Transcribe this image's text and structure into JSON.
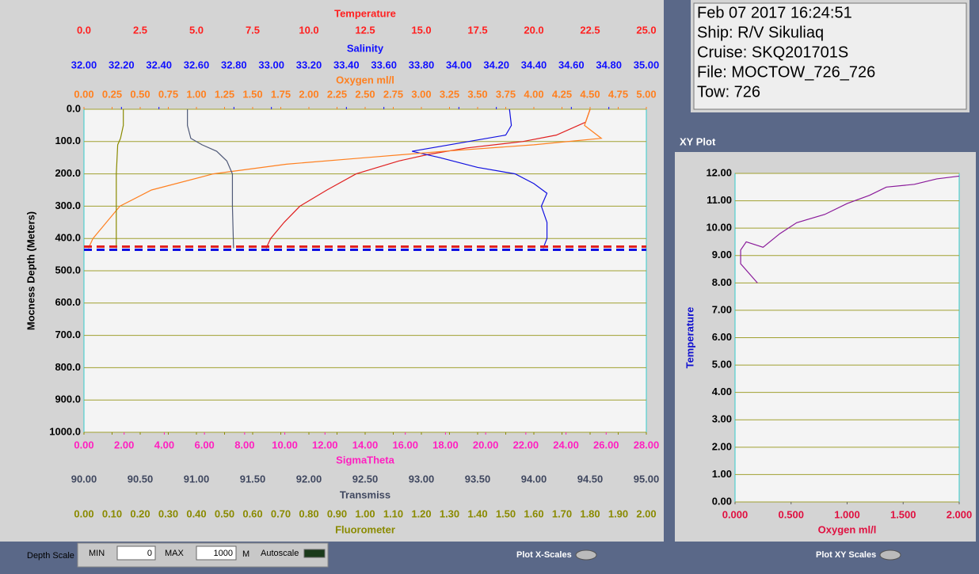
{
  "info": {
    "lines": [
      "Feb 07 2017 16:24:51",
      "Ship: R/V Sikuliaq",
      "Cruise: SKQ201701S",
      "File: MOCTOW_726_726",
      "Tow: 726"
    ]
  },
  "xy_title": "XY Plot",
  "controls": {
    "depth_scale": "Depth Scale",
    "min_label": "MIN",
    "min_value": "0",
    "max_label": "MAX",
    "max_value": "1000",
    "unit": "M",
    "autoscale": "Autoscale",
    "plot_x_scales": "Plot X-Scales",
    "plot_xy_scales": "Plot XY Scales"
  },
  "chart_data": [
    {
      "type": "line",
      "y_title": "Mocness Depth (Meters)",
      "y_inverted": true,
      "grid": true,
      "ylim": [
        0,
        1000
      ],
      "yticks": [
        {
          "value": 0,
          "label": "0.0"
        },
        {
          "value": 100,
          "label": "100.0"
        },
        {
          "value": 200,
          "label": "200.0"
        },
        {
          "value": 300,
          "label": "300.0"
        },
        {
          "value": 400,
          "label": "400.0"
        },
        {
          "value": 500,
          "label": "500.0"
        },
        {
          "value": 600,
          "label": "600.0"
        },
        {
          "value": 700,
          "label": "700.0"
        },
        {
          "value": 800,
          "label": "800.0"
        },
        {
          "value": 900,
          "label": "900.0"
        },
        {
          "value": 1000,
          "label": "1000.0"
        }
      ],
      "x_axes": [
        {
          "title": "Temperature",
          "color": "#ff2020",
          "position": "top",
          "xlim": [
            0,
            25
          ],
          "xticks": [
            {
              "value": 0,
              "label": "0.0"
            },
            2.5,
            {
              "value": 5,
              "label": "5.0"
            },
            7.5,
            {
              "value": 10,
              "label": "10.0"
            },
            12.5,
            {
              "value": 15,
              "label": "15.0"
            },
            17.5,
            {
              "value": 20,
              "label": "20.0"
            },
            22.5,
            {
              "value": 25,
              "label": "25.0"
            }
          ]
        },
        {
          "title": "Salinity",
          "color": "#1010ff",
          "position": "top",
          "xlim": [
            32,
            35
          ],
          "xticks": [
            {
              "value": 32,
              "label": "32.00"
            },
            {
              "value": 32.2,
              "label": "32.20"
            },
            {
              "value": 32.4,
              "label": "32.40"
            },
            {
              "value": 32.6,
              "label": "32.60"
            },
            {
              "value": 32.8,
              "label": "32.80"
            },
            {
              "value": 33,
              "label": "33.00"
            },
            {
              "value": 33.2,
              "label": "33.20"
            },
            {
              "value": 33.4,
              "label": "33.40"
            },
            {
              "value": 33.6,
              "label": "33.60"
            },
            {
              "value": 33.8,
              "label": "33.80"
            },
            {
              "value": 34,
              "label": "34.00"
            },
            {
              "value": 34.2,
              "label": "34.20"
            },
            {
              "value": 34.4,
              "label": "34.40"
            },
            {
              "value": 34.6,
              "label": "34.60"
            },
            {
              "value": 34.8,
              "label": "34.80"
            },
            {
              "value": 35,
              "label": "35.00"
            }
          ]
        },
        {
          "title": "Oxygen ml/l",
          "color": "#ff8020",
          "position": "top",
          "xlim": [
            0,
            5
          ],
          "xticks": [
            {
              "value": 0,
              "label": "0.00"
            },
            {
              "value": 0.25,
              "label": "0.25"
            },
            {
              "value": 0.5,
              "label": "0.50"
            },
            {
              "value": 0.75,
              "label": "0.75"
            },
            {
              "value": 1,
              "label": "1.00"
            },
            {
              "value": 1.25,
              "label": "1.25"
            },
            {
              "value": 1.5,
              "label": "1.50"
            },
            {
              "value": 1.75,
              "label": "1.75"
            },
            {
              "value": 2,
              "label": "2.00"
            },
            {
              "value": 2.25,
              "label": "2.25"
            },
            {
              "value": 2.5,
              "label": "2.50"
            },
            {
              "value": 2.75,
              "label": "2.75"
            },
            {
              "value": 3,
              "label": "3.00"
            },
            {
              "value": 3.25,
              "label": "3.25"
            },
            {
              "value": 3.5,
              "label": "3.50"
            },
            {
              "value": 3.75,
              "label": "3.75"
            },
            {
              "value": 4,
              "label": "4.00"
            },
            {
              "value": 4.25,
              "label": "4.25"
            },
            {
              "value": 4.5,
              "label": "4.50"
            },
            {
              "value": 4.75,
              "label": "4.75"
            },
            {
              "value": 5,
              "label": "5.00"
            }
          ]
        },
        {
          "title": "SigmaTheta",
          "color": "#ff20c0",
          "position": "bottom",
          "xlim": [
            0,
            28
          ],
          "xticks": [
            {
              "value": 0,
              "label": "0.00"
            },
            {
              "value": 2,
              "label": "2.00"
            },
            {
              "value": 4,
              "label": "4.00"
            },
            {
              "value": 6,
              "label": "6.00"
            },
            {
              "value": 8,
              "label": "8.00"
            },
            {
              "value": 10,
              "label": "10.00"
            },
            {
              "value": 12,
              "label": "12.00"
            },
            {
              "value": 14,
              "label": "14.00"
            },
            {
              "value": 16,
              "label": "16.00"
            },
            {
              "value": 18,
              "label": "18.00"
            },
            {
              "value": 20,
              "label": "20.00"
            },
            {
              "value": 22,
              "label": "22.00"
            },
            {
              "value": 24,
              "label": "24.00"
            },
            {
              "value": 26,
              "label": "26.00"
            },
            {
              "value": 28,
              "label": "28.00"
            }
          ]
        },
        {
          "title": "Transmiss",
          "color": "#404860",
          "position": "bottom",
          "xlim": [
            90,
            95
          ],
          "xticks": [
            {
              "value": 90,
              "label": "90.00"
            },
            {
              "value": 90.5,
              "label": "90.50"
            },
            {
              "value": 91,
              "label": "91.00"
            },
            {
              "value": 91.5,
              "label": "91.50"
            },
            {
              "value": 92,
              "label": "92.00"
            },
            {
              "value": 92.5,
              "label": "92.50"
            },
            {
              "value": 93,
              "label": "93.00"
            },
            {
              "value": 93.5,
              "label": "93.50"
            },
            {
              "value": 94,
              "label": "94.00"
            },
            {
              "value": 94.5,
              "label": "94.50"
            },
            {
              "value": 95,
              "label": "95.00"
            }
          ]
        },
        {
          "title": "Fluorometer",
          "color": "#8a8a00",
          "position": "bottom",
          "xlim": [
            0,
            2
          ],
          "xticks": [
            {
              "value": 0,
              "label": "0.00"
            },
            {
              "value": 0.1,
              "label": "0.10"
            },
            {
              "value": 0.2,
              "label": "0.20"
            },
            {
              "value": 0.3,
              "label": "0.30"
            },
            {
              "value": 0.4,
              "label": "0.40"
            },
            {
              "value": 0.5,
              "label": "0.50"
            },
            {
              "value": 0.6,
              "label": "0.60"
            },
            {
              "value": 0.7,
              "label": "0.70"
            },
            {
              "value": 0.8,
              "label": "0.80"
            },
            {
              "value": 0.9,
              "label": "0.90"
            },
            {
              "value": 1,
              "label": "1.00"
            },
            {
              "value": 1.1,
              "label": "1.10"
            },
            {
              "value": 1.2,
              "label": "1.20"
            },
            {
              "value": 1.3,
              "label": "1.30"
            },
            {
              "value": 1.4,
              "label": "1.40"
            },
            {
              "value": 1.5,
              "label": "1.50"
            },
            {
              "value": 1.6,
              "label": "1.60"
            },
            {
              "value": 1.7,
              "label": "1.70"
            },
            {
              "value": 1.8,
              "label": "1.80"
            },
            {
              "value": 1.9,
              "label": "1.90"
            },
            {
              "value": 2,
              "label": "2.00"
            }
          ]
        }
      ],
      "series": [
        {
          "axis": 0,
          "color": "#e02020",
          "depth": [
            0,
            40,
            80,
            100,
            120,
            140,
            160,
            200,
            250,
            300,
            350,
            400,
            430
          ],
          "values": [
            22.5,
            22.3,
            21,
            19.5,
            17,
            15.3,
            14,
            12.1,
            10.8,
            9.6,
            8.9,
            8.3,
            8.1
          ]
        },
        {
          "axis": 1,
          "color": "#1010e0",
          "depth": [
            0,
            50,
            80,
            100,
            130,
            150,
            180,
            200,
            230,
            260,
            300,
            350,
            400,
            430
          ],
          "values": [
            34.27,
            34.28,
            34.25,
            34.05,
            33.75,
            33.9,
            34.1,
            34.3,
            34.4,
            34.47,
            34.44,
            34.47,
            34.47,
            34.45
          ]
        },
        {
          "axis": 2,
          "color": "#ff8020",
          "depth": [
            0,
            50,
            90,
            110,
            130,
            150,
            170,
            200,
            250,
            300,
            350,
            400,
            430
          ],
          "values": [
            4.5,
            4.45,
            4.6,
            4,
            3.2,
            2.5,
            1.8,
            1.15,
            0.6,
            0.32,
            0.2,
            0.08,
            0.04
          ]
        },
        {
          "axis": 4,
          "color": "#505a78",
          "depth": [
            0,
            50,
            90,
            110,
            130,
            160,
            200,
            300,
            430
          ],
          "values": [
            90.92,
            90.92,
            90.95,
            91.05,
            91.18,
            91.27,
            91.32,
            91.32,
            91.33
          ]
        },
        {
          "axis": 5,
          "color": "#8a8a00",
          "depth": [
            0,
            50,
            90,
            110,
            200,
            300,
            430
          ],
          "values": [
            0.14,
            0.14,
            0.13,
            0.12,
            0.115,
            0.115,
            0.115
          ]
        }
      ],
      "depth_marker": 430
    },
    {
      "type": "line",
      "x_title": "Oxygen ml/l",
      "y_title": "Temperature",
      "grid": true,
      "xlim": [
        0,
        2
      ],
      "ylim": [
        0,
        12
      ],
      "xticks": [
        {
          "value": 0,
          "label": "0.000"
        },
        {
          "value": 0.5,
          "label": "0.500"
        },
        {
          "value": 1,
          "label": "1.000"
        },
        {
          "value": 1.5,
          "label": "1.500"
        },
        {
          "value": 2,
          "label": "2.000"
        }
      ],
      "yticks": [
        {
          "value": 0,
          "label": "0.00"
        },
        {
          "value": 1,
          "label": "1.00"
        },
        {
          "value": 2,
          "label": "2.00"
        },
        {
          "value": 3,
          "label": "3.00"
        },
        {
          "value": 4,
          "label": "4.00"
        },
        {
          "value": 5,
          "label": "5.00"
        },
        {
          "value": 6,
          "label": "6.00"
        },
        {
          "value": 7,
          "label": "7.00"
        },
        {
          "value": 8,
          "label": "8.00"
        },
        {
          "value": 9,
          "label": "9.00"
        },
        {
          "value": 10,
          "label": "10.00"
        },
        {
          "value": 11,
          "label": "11.00"
        },
        {
          "value": 12,
          "label": "12.00"
        }
      ],
      "series": [
        {
          "color": "#8a1a9a",
          "x": [
            0.2,
            0.05,
            0.05,
            0.1,
            0.25,
            0.4,
            0.55,
            0.8,
            1,
            1.2,
            1.35,
            1.6,
            1.8,
            2
          ],
          "values": [
            8,
            8.7,
            9.2,
            9.5,
            9.3,
            9.8,
            10.2,
            10.5,
            10.9,
            11.2,
            11.5,
            11.6,
            11.8,
            11.9
          ]
        }
      ]
    }
  ]
}
